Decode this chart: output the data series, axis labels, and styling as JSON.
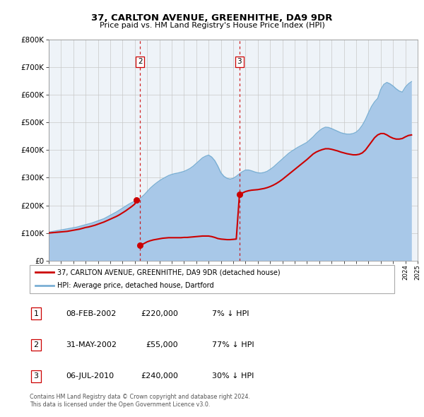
{
  "title": "37, CARLTON AVENUE, GREENHITHE, DA9 9DR",
  "subtitle": "Price paid vs. HM Land Registry's House Price Index (HPI)",
  "hpi_label": "HPI: Average price, detached house, Dartford",
  "property_label": "37, CARLTON AVENUE, GREENHITHE, DA9 9DR (detached house)",
  "footer1": "Contains HM Land Registry data © Crown copyright and database right 2024.",
  "footer2": "This data is licensed under the Open Government Licence v3.0.",
  "ylim": [
    0,
    800000
  ],
  "yticks": [
    0,
    100000,
    200000,
    300000,
    400000,
    500000,
    600000,
    700000,
    800000
  ],
  "ytick_labels": [
    "£0",
    "£100K",
    "£200K",
    "£300K",
    "£400K",
    "£500K",
    "£600K",
    "£700K",
    "£800K"
  ],
  "hpi_color": "#a8c8e8",
  "hpi_line_color": "#7aafd4",
  "property_color": "#cc0000",
  "dashed_line_color": "#cc0000",
  "bg_color": "#f0f4f8",
  "transactions": [
    {
      "num": 1,
      "date_num": 2002.1,
      "price": 220000
    },
    {
      "num": 2,
      "date_num": 2002.42,
      "price": 55000
    },
    {
      "num": 3,
      "date_num": 2010.51,
      "price": 240000
    }
  ],
  "table_rows": [
    {
      "num": 1,
      "date": "08-FEB-2002",
      "price": "£220,000",
      "pct": "7% ↓ HPI"
    },
    {
      "num": 2,
      "date": "31-MAY-2002",
      "price": "£55,000",
      "pct": "77% ↓ HPI"
    },
    {
      "num": 3,
      "date": "06-JUL-2010",
      "price": "£240,000",
      "pct": "30% ↓ HPI"
    }
  ],
  "hpi_x": [
    1995.0,
    1995.25,
    1995.5,
    1995.75,
    1996.0,
    1996.25,
    1996.5,
    1996.75,
    1997.0,
    1997.25,
    1997.5,
    1997.75,
    1998.0,
    1998.25,
    1998.5,
    1998.75,
    1999.0,
    1999.25,
    1999.5,
    1999.75,
    2000.0,
    2000.25,
    2000.5,
    2000.75,
    2001.0,
    2001.25,
    2001.5,
    2001.75,
    2002.0,
    2002.25,
    2002.5,
    2002.75,
    2003.0,
    2003.25,
    2003.5,
    2003.75,
    2004.0,
    2004.25,
    2004.5,
    2004.75,
    2005.0,
    2005.25,
    2005.5,
    2005.75,
    2006.0,
    2006.25,
    2006.5,
    2006.75,
    2007.0,
    2007.25,
    2007.5,
    2007.75,
    2008.0,
    2008.25,
    2008.5,
    2008.75,
    2009.0,
    2009.25,
    2009.5,
    2009.75,
    2010.0,
    2010.25,
    2010.5,
    2010.75,
    2011.0,
    2011.25,
    2011.5,
    2011.75,
    2012.0,
    2012.25,
    2012.5,
    2012.75,
    2013.0,
    2013.25,
    2013.5,
    2013.75,
    2014.0,
    2014.25,
    2014.5,
    2014.75,
    2015.0,
    2015.25,
    2015.5,
    2015.75,
    2016.0,
    2016.25,
    2016.5,
    2016.75,
    2017.0,
    2017.25,
    2017.5,
    2017.75,
    2018.0,
    2018.25,
    2018.5,
    2018.75,
    2019.0,
    2019.25,
    2019.5,
    2019.75,
    2020.0,
    2020.25,
    2020.5,
    2020.75,
    2021.0,
    2021.25,
    2021.5,
    2021.75,
    2022.0,
    2022.25,
    2022.5,
    2022.75,
    2023.0,
    2023.25,
    2023.5,
    2023.75,
    2024.0,
    2024.25,
    2024.5
  ],
  "hpi_y": [
    103000,
    105000,
    107000,
    109000,
    111000,
    113000,
    115000,
    117000,
    119000,
    121000,
    124000,
    127000,
    130000,
    133000,
    136000,
    140000,
    144000,
    148000,
    152000,
    158000,
    164000,
    170000,
    176000,
    183000,
    190000,
    197000,
    204000,
    210000,
    215000,
    220000,
    228000,
    238000,
    250000,
    262000,
    272000,
    281000,
    289000,
    296000,
    302000,
    308000,
    312000,
    315000,
    317000,
    320000,
    323000,
    328000,
    334000,
    342000,
    352000,
    362000,
    372000,
    378000,
    382000,
    375000,
    362000,
    342000,
    318000,
    305000,
    298000,
    295000,
    298000,
    305000,
    314000,
    322000,
    328000,
    328000,
    325000,
    321000,
    318000,
    317000,
    319000,
    323000,
    330000,
    338000,
    348000,
    358000,
    368000,
    378000,
    388000,
    396000,
    403000,
    410000,
    416000,
    422000,
    428000,
    438000,
    448000,
    460000,
    470000,
    478000,
    483000,
    482000,
    478000,
    473000,
    468000,
    463000,
    460000,
    458000,
    458000,
    460000,
    465000,
    475000,
    490000,
    510000,
    535000,
    558000,
    575000,
    587000,
    620000,
    638000,
    645000,
    640000,
    632000,
    622000,
    614000,
    610000,
    628000,
    640000,
    648000
  ],
  "prop_segments": [
    {
      "x": [
        1995.0,
        1995.25,
        1995.5,
        1995.75,
        1996.0,
        1996.25,
        1996.5,
        1996.75,
        1997.0,
        1997.25,
        1997.5,
        1997.75,
        1998.0,
        1998.25,
        1998.5,
        1998.75,
        1999.0,
        1999.25,
        1999.5,
        1999.75,
        2000.0,
        2000.25,
        2000.5,
        2000.75,
        2001.0,
        2001.25,
        2001.5,
        2001.75,
        2002.0,
        2002.1
      ],
      "y": [
        100000,
        101000,
        102000,
        103000,
        104000,
        105000,
        106000,
        108000,
        110000,
        112000,
        114000,
        117000,
        120000,
        122000,
        125000,
        128000,
        132000,
        136000,
        140000,
        145000,
        150000,
        155000,
        160000,
        166000,
        173000,
        180000,
        188000,
        196000,
        205000,
        220000
      ]
    },
    {
      "x": [
        2002.42,
        2002.5,
        2002.75,
        2003.0,
        2003.25,
        2003.5,
        2003.75,
        2004.0,
        2004.25,
        2004.5,
        2004.75,
        2005.0,
        2005.25,
        2005.5,
        2005.75,
        2006.0,
        2006.25,
        2006.5,
        2006.75,
        2007.0,
        2007.25,
        2007.5,
        2007.75,
        2008.0,
        2008.25,
        2008.5,
        2008.75,
        2009.0,
        2009.25,
        2009.5,
        2009.75,
        2010.0,
        2010.25,
        2010.51
      ],
      "y": [
        55000,
        57000,
        62000,
        68000,
        72000,
        75000,
        77000,
        79000,
        81000,
        82000,
        83000,
        83000,
        83000,
        83000,
        83000,
        84000,
        84000,
        85000,
        86000,
        87000,
        88000,
        89000,
        89000,
        89000,
        87000,
        84000,
        80000,
        78000,
        77000,
        76000,
        76000,
        77000,
        78000,
        240000
      ]
    },
    {
      "x": [
        2010.51,
        2010.75,
        2011.0,
        2011.25,
        2011.5,
        2011.75,
        2012.0,
        2012.25,
        2012.5,
        2012.75,
        2013.0,
        2013.25,
        2013.5,
        2013.75,
        2014.0,
        2014.25,
        2014.5,
        2014.75,
        2015.0,
        2015.25,
        2015.5,
        2015.75,
        2016.0,
        2016.25,
        2016.5,
        2016.75,
        2017.0,
        2017.25,
        2017.5,
        2017.75,
        2018.0,
        2018.25,
        2018.5,
        2018.75,
        2019.0,
        2019.25,
        2019.5,
        2019.75,
        2020.0,
        2020.25,
        2020.5,
        2020.75,
        2021.0,
        2021.25,
        2021.5,
        2021.75,
        2022.0,
        2022.25,
        2022.5,
        2022.75,
        2023.0,
        2023.25,
        2023.5,
        2023.75,
        2024.0,
        2024.25,
        2024.5
      ],
      "y": [
        240000,
        245000,
        250000,
        253000,
        255000,
        256000,
        257000,
        259000,
        261000,
        264000,
        268000,
        273000,
        279000,
        286000,
        294000,
        303000,
        312000,
        321000,
        330000,
        339000,
        348000,
        357000,
        366000,
        376000,
        386000,
        393000,
        398000,
        402000,
        405000,
        405000,
        403000,
        400000,
        397000,
        393000,
        390000,
        387000,
        385000,
        383000,
        383000,
        385000,
        390000,
        400000,
        415000,
        430000,
        445000,
        455000,
        460000,
        460000,
        455000,
        448000,
        443000,
        440000,
        440000,
        442000,
        448000,
        453000,
        455000
      ]
    }
  ]
}
